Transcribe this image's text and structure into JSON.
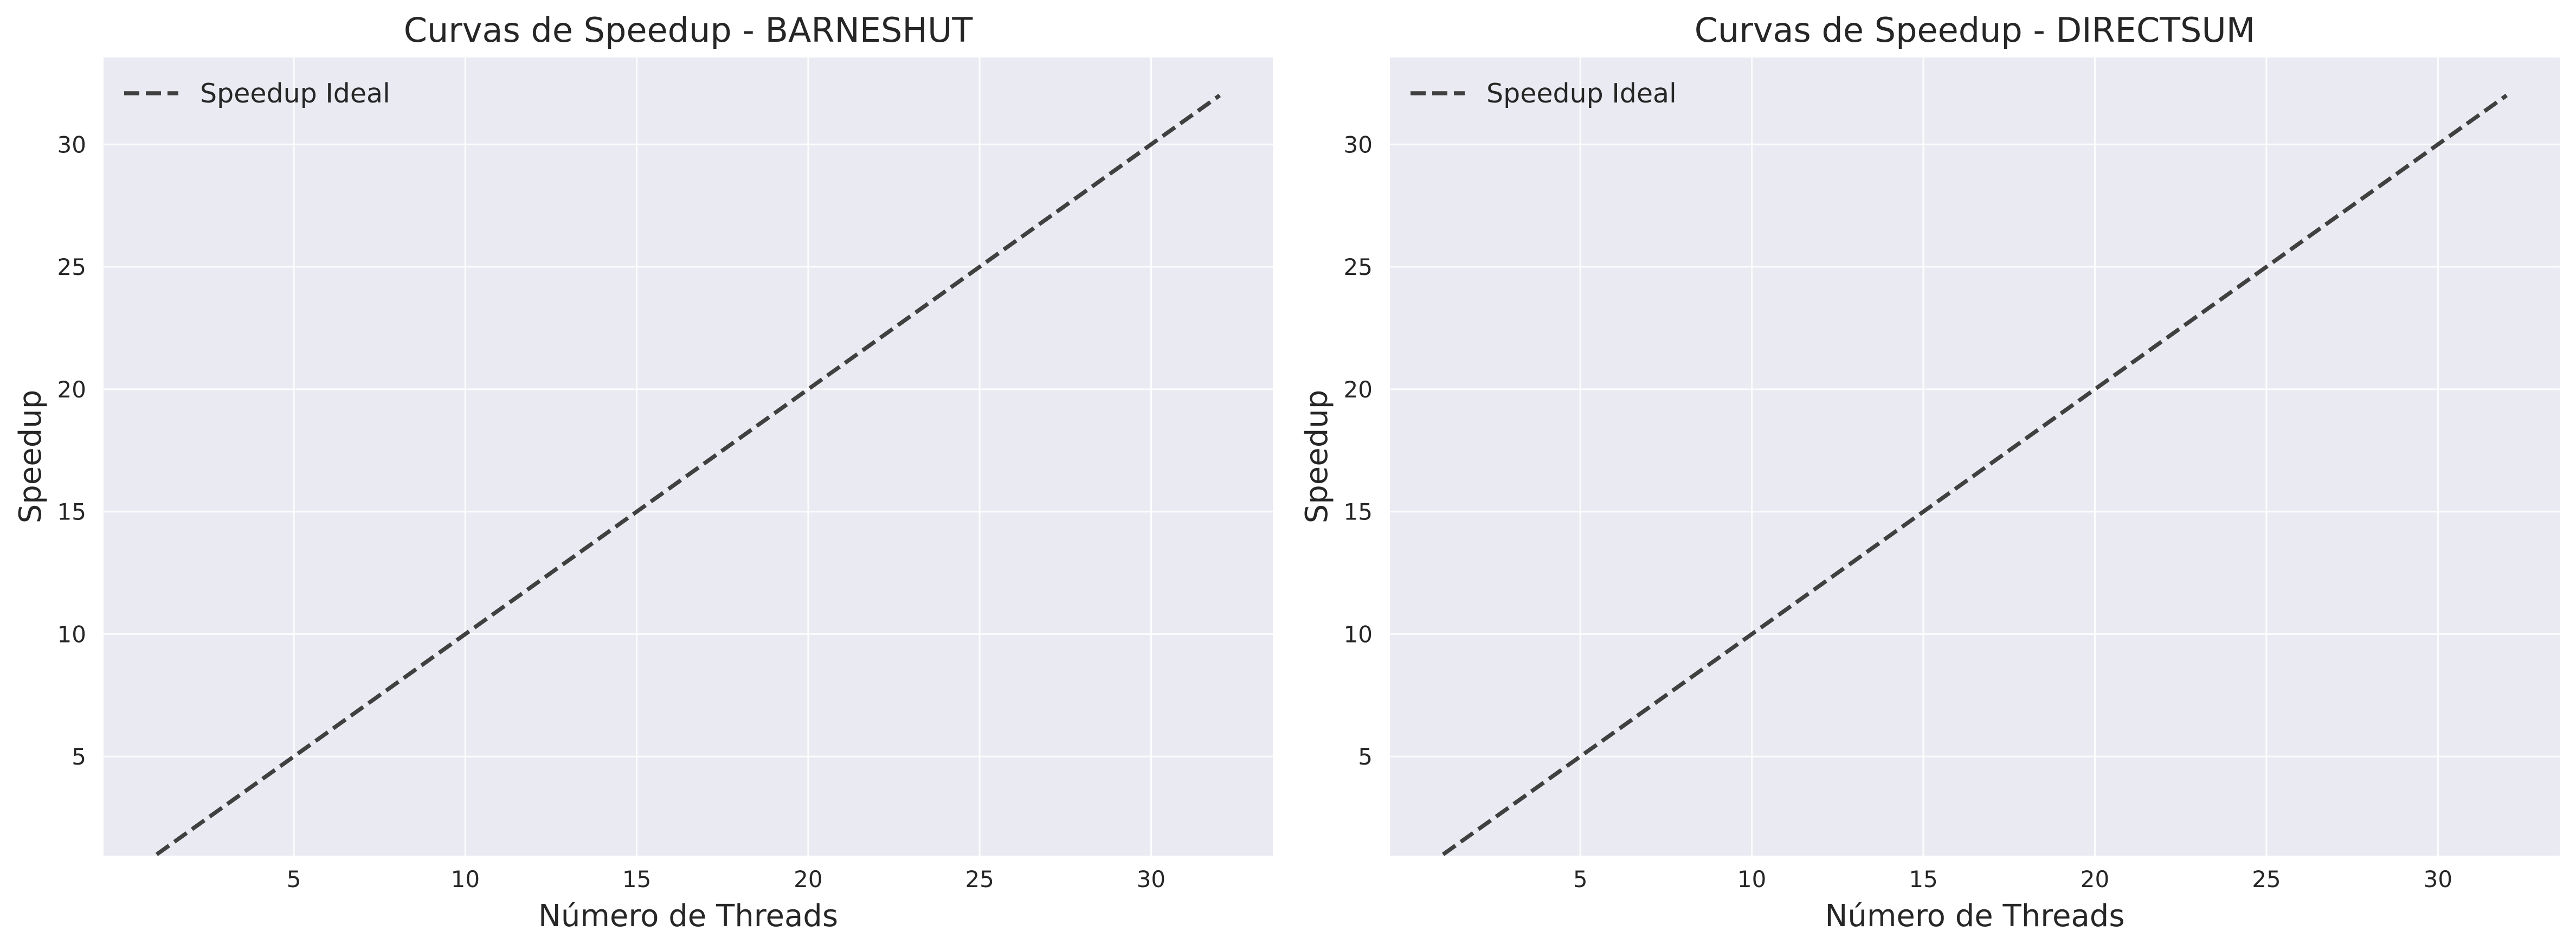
{
  "chart_data": [
    {
      "type": "line",
      "title": "Curvas de Speedup - BARNESHUT",
      "xlabel": "Número de Threads",
      "ylabel": "Speedup",
      "xlim": [
        -0.55,
        33.55
      ],
      "ylim": [
        0.95,
        33.55
      ],
      "xticks": [
        5,
        10,
        15,
        20,
        25,
        30
      ],
      "yticks": [
        5,
        10,
        15,
        20,
        25,
        30
      ],
      "grid": true,
      "legend_position": "upper-left",
      "series": [
        {
          "name": "Speedup Ideal",
          "style": "dashed",
          "color": "#404040",
          "x": [
            1,
            32
          ],
          "y": [
            1,
            32
          ]
        }
      ]
    },
    {
      "type": "line",
      "title": "Curvas de Speedup - DIRECTSUM",
      "xlabel": "Número de Threads",
      "ylabel": "Speedup",
      "xlim": [
        -0.55,
        33.55
      ],
      "ylim": [
        0.95,
        33.55
      ],
      "xticks": [
        5,
        10,
        15,
        20,
        25,
        30
      ],
      "yticks": [
        5,
        10,
        15,
        20,
        25,
        30
      ],
      "grid": true,
      "legend_position": "upper-left",
      "series": [
        {
          "name": "Speedup Ideal",
          "style": "dashed",
          "color": "#404040",
          "x": [
            1,
            32
          ],
          "y": [
            1,
            32
          ]
        }
      ]
    }
  ],
  "colors": {
    "plot_background": "#eaeaf2",
    "grid": "#ffffff",
    "text": "#262626"
  }
}
